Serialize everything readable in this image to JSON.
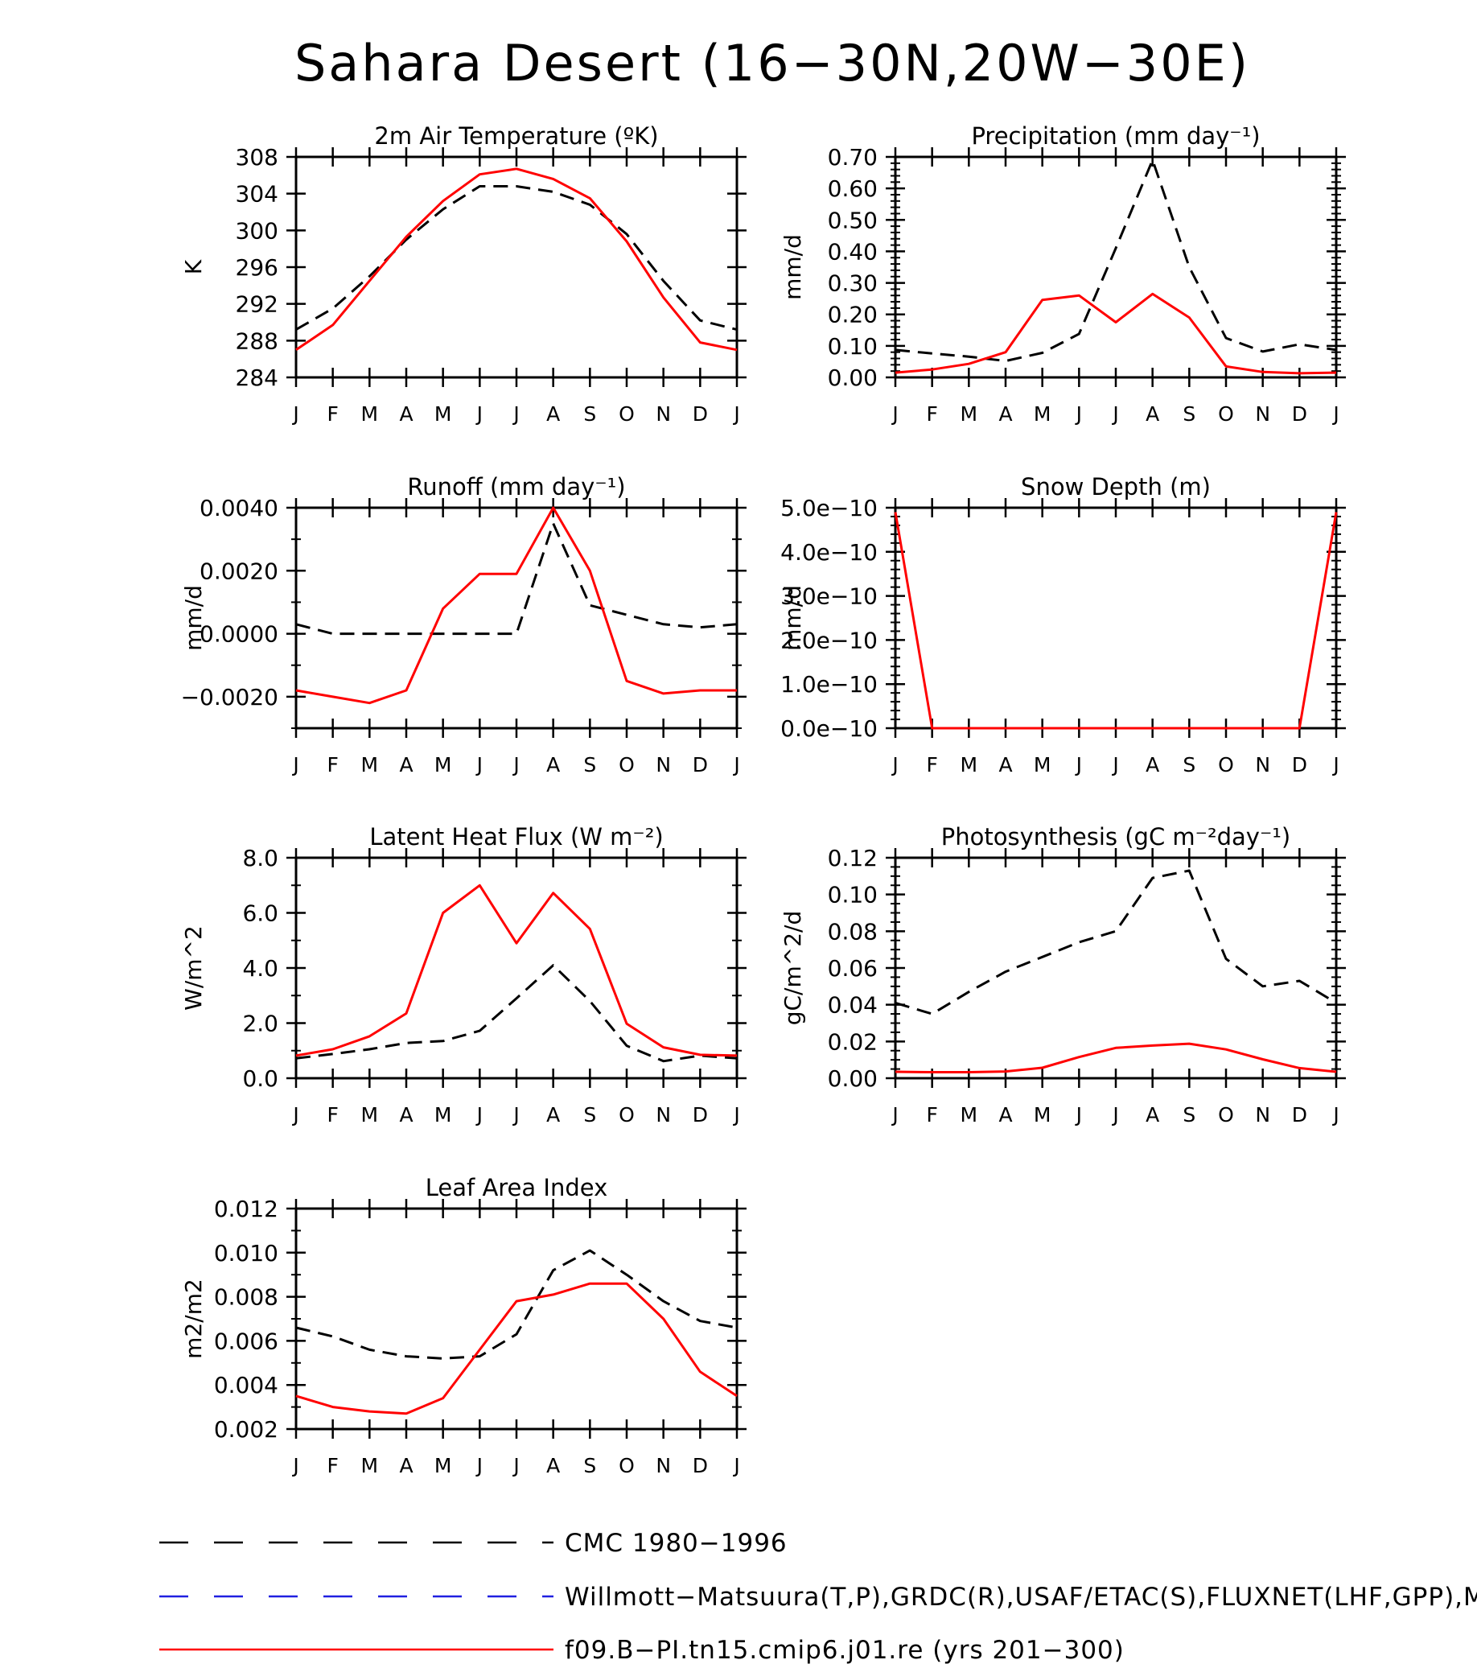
{
  "page_title": "Sahara Desert (16−30N,20W−30E)",
  "month_labels": [
    "J",
    "F",
    "M",
    "A",
    "M",
    "J",
    "J",
    "A",
    "S",
    "O",
    "N",
    "D",
    "J"
  ],
  "colors": {
    "obs_cmc": "#000000",
    "obs_willmott": "#2020e0",
    "model": "#ff0000"
  },
  "legend": [
    {
      "name": "CMC 1980−1996",
      "style": "dashed",
      "color": "#000000"
    },
    {
      "name": "Willmott−Matsuura(T,P),GRDC(R),USAF/ETAC(S),FLUXNET(LHF,GPP),MODIS",
      "style": "dashed",
      "color": "#2020e0"
    },
    {
      "name": "f09.B−PI.tn15.cmip6.j01.re (yrs 201−300)",
      "style": "solid",
      "color": "#ff0000"
    }
  ],
  "chart_data": [
    {
      "type": "line",
      "title": "2m Air Temperature (ºK)",
      "ylabel": "K",
      "ylim": [
        284,
        308
      ],
      "yticks": [
        "284",
        "288",
        "292",
        "296",
        "300",
        "304",
        "308"
      ],
      "yminor": 0,
      "series": [
        {
          "name": "CMC 1980−1996",
          "style": "dashed",
          "values": [
            289.2,
            291.5,
            295.0,
            299.0,
            302.3,
            304.8,
            304.8,
            304.2,
            302.8,
            299.6,
            294.5,
            290.2,
            289.2
          ]
        },
        {
          "name": "f09.B−PI.tn15.cmip6.j01.re (yrs 201−300)",
          "style": "solid",
          "values": [
            287.0,
            289.7,
            294.5,
            299.3,
            303.2,
            306.1,
            306.7,
            305.6,
            303.5,
            298.8,
            292.7,
            287.8,
            287.0
          ]
        }
      ]
    },
    {
      "type": "line",
      "title": "Precipitation (mm day⁻¹)",
      "ylabel": "mm/d",
      "ylim": [
        0,
        0.7
      ],
      "yticks": [
        "0.00",
        "0.10",
        "0.20",
        "0.30",
        "0.40",
        "0.50",
        "0.60",
        "0.70"
      ],
      "yminor": 4,
      "series": [
        {
          "name": "CMC 1980−1996",
          "style": "dashed",
          "values": [
            0.087,
            0.076,
            0.066,
            0.052,
            0.078,
            0.138,
            0.41,
            0.69,
            0.35,
            0.125,
            0.082,
            0.105,
            0.087
          ]
        },
        {
          "name": "f09.B−PI.tn15.cmip6.j01.re (yrs 201−300)",
          "style": "solid",
          "values": [
            0.015,
            0.025,
            0.043,
            0.08,
            0.246,
            0.26,
            0.175,
            0.265,
            0.19,
            0.035,
            0.017,
            0.013,
            0.015
          ]
        }
      ]
    },
    {
      "type": "line",
      "title": "Runoff (mm day⁻¹)",
      "ylabel": "mm/d",
      "ylim": [
        -0.003,
        0.004
      ],
      "yticks": [
        "−0.0020",
        "0.0000",
        "0.0020",
        "0.0040"
      ],
      "ytick_values": [
        -0.002,
        0.0,
        0.002,
        0.004
      ],
      "yminor": 1,
      "series": [
        {
          "name": "CMC 1980−1996",
          "style": "dashed",
          "values": [
            0.0003,
            0.0,
            0.0,
            0.0,
            0.0,
            0.0,
            0.0,
            0.0035,
            0.0009,
            0.0006,
            0.0003,
            0.0002,
            0.0003
          ]
        },
        {
          "name": "f09.B−PI.tn15.cmip6.j01.re (yrs 201−300)",
          "style": "solid",
          "values": [
            -0.0018,
            -0.002,
            -0.0022,
            -0.0018,
            0.0008,
            0.0019,
            0.0019,
            0.004,
            0.002,
            -0.0015,
            -0.0019,
            -0.0018,
            -0.0018
          ]
        }
      ]
    },
    {
      "type": "line",
      "title": "Snow Depth (m)",
      "ylabel": "mm/d",
      "ylim": [
        0,
        5e-10
      ],
      "yticks": [
        "0.0e−10",
        "1.0e−10",
        "2.0e−10",
        "3.0e−10",
        "4.0e−10",
        "5.0e−10"
      ],
      "yminor": 4,
      "series": [
        {
          "name": "CMC 1980−1996",
          "style": "dashed",
          "values": [
            0,
            0,
            0,
            0,
            0,
            0,
            0,
            0,
            0,
            0,
            0,
            0,
            0
          ]
        },
        {
          "name": "f09.B−PI.tn15.cmip6.j01.re (yrs 201−300)",
          "style": "solid",
          "values": [
            4.9e-10,
            0,
            0,
            0,
            0,
            0,
            0,
            0,
            0,
            0,
            0,
            0,
            4.9e-10
          ]
        }
      ]
    },
    {
      "type": "line",
      "title": "Latent Heat Flux (W m⁻²)",
      "ylabel": "W/m^2",
      "ylim": [
        0,
        8
      ],
      "yticks": [
        "0.0",
        "2.0",
        "4.0",
        "6.0",
        "8.0"
      ],
      "yminor": 1,
      "series": [
        {
          "name": "CMC 1980−1996",
          "style": "dashed",
          "values": [
            0.72,
            0.88,
            1.05,
            1.28,
            1.35,
            1.72,
            2.9,
            4.1,
            2.8,
            1.18,
            0.62,
            0.82,
            0.72
          ]
        },
        {
          "name": "f09.B−PI.tn15.cmip6.j01.re (yrs 201−300)",
          "style": "solid",
          "values": [
            0.82,
            1.05,
            1.52,
            2.35,
            6.0,
            7.0,
            4.9,
            6.72,
            5.42,
            1.98,
            1.12,
            0.85,
            0.82
          ]
        }
      ]
    },
    {
      "type": "line",
      "title": "Photosynthesis (gC m⁻²day⁻¹)",
      "ylabel": "gC/m^2/d",
      "ylim": [
        0,
        0.12
      ],
      "yticks": [
        "0.00",
        "0.02",
        "0.04",
        "0.06",
        "0.08",
        "0.10",
        "0.12"
      ],
      "yminor": 3,
      "series": [
        {
          "name": "CMC 1980−1996",
          "style": "dashed",
          "values": [
            0.041,
            0.035,
            0.047,
            0.058,
            0.066,
            0.074,
            0.08,
            0.109,
            0.113,
            0.065,
            0.05,
            0.053,
            0.041
          ]
        },
        {
          "name": "f09.B−PI.tn15.cmip6.j01.re (yrs 201−300)",
          "style": "solid",
          "values": [
            0.0035,
            0.0033,
            0.0033,
            0.0037,
            0.0057,
            0.0115,
            0.0165,
            0.0178,
            0.0188,
            0.0157,
            0.0103,
            0.0055,
            0.0035
          ]
        }
      ]
    },
    {
      "type": "line",
      "title": "Leaf Area Index",
      "ylabel": "m2/m2",
      "ylim": [
        0.002,
        0.012
      ],
      "yticks": [
        "0.002",
        "0.004",
        "0.006",
        "0.008",
        "0.010",
        "0.012"
      ],
      "yminor": 1,
      "series": [
        {
          "name": "CMC 1980−1996",
          "style": "dashed",
          "values": [
            0.0066,
            0.0062,
            0.0056,
            0.0053,
            0.0052,
            0.0053,
            0.0063,
            0.0092,
            0.0101,
            0.009,
            0.0078,
            0.0069,
            0.0066
          ]
        },
        {
          "name": "f09.B−PI.tn15.cmip6.j01.re (yrs 201−300)",
          "style": "solid",
          "values": [
            0.0035,
            0.003,
            0.0028,
            0.0027,
            0.0034,
            0.0056,
            0.0078,
            0.0081,
            0.0086,
            0.0086,
            0.007,
            0.0046,
            0.0035
          ]
        }
      ]
    }
  ]
}
